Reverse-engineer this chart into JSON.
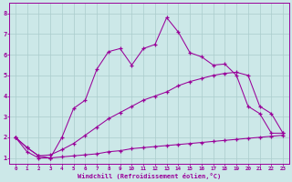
{
  "xlabel": "Windchill (Refroidissement éolien,°C)",
  "background_color": "#cce8e8",
  "grid_color": "#aacccc",
  "line_color": "#990099",
  "xlim": [
    -0.5,
    23.5
  ],
  "ylim": [
    0.7,
    8.5
  ],
  "xticks": [
    0,
    1,
    2,
    3,
    4,
    5,
    6,
    7,
    8,
    9,
    10,
    11,
    12,
    13,
    14,
    15,
    16,
    17,
    18,
    19,
    20,
    21,
    22,
    23
  ],
  "yticks": [
    1,
    2,
    3,
    4,
    5,
    6,
    7,
    8
  ],
  "line1_y": [
    2.0,
    1.5,
    1.1,
    1.0,
    2.0,
    3.4,
    3.8,
    5.3,
    6.15,
    6.3,
    5.5,
    6.3,
    6.5,
    7.8,
    7.1,
    6.1,
    5.9,
    5.5,
    5.55,
    5.0,
    3.5,
    3.15,
    2.2,
    2.2
  ],
  "line2_y": [
    2.0,
    1.5,
    1.1,
    1.15,
    1.4,
    1.7,
    2.1,
    2.5,
    2.9,
    3.2,
    3.5,
    3.8,
    4.0,
    4.2,
    4.5,
    4.7,
    4.85,
    5.0,
    5.1,
    5.15,
    5.0,
    3.5,
    3.15,
    2.2
  ],
  "line3_y": [
    2.0,
    1.3,
    1.0,
    1.0,
    1.05,
    1.1,
    1.15,
    1.2,
    1.3,
    1.35,
    1.45,
    1.5,
    1.55,
    1.6,
    1.65,
    1.7,
    1.75,
    1.8,
    1.85,
    1.9,
    1.95,
    2.0,
    2.05,
    2.1
  ]
}
